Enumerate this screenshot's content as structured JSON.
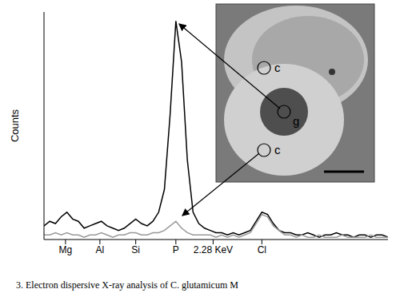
{
  "chart_data": {
    "type": "line",
    "y_label": "Counts",
    "caption": "3. Electron dispersive X-ray analysis of C. glutamicum M",
    "annotations": [
      "c",
      "g",
      "c"
    ],
    "x": [
      1.1,
      1.14,
      1.18,
      1.22,
      1.26,
      1.3,
      1.34,
      1.38,
      1.42,
      1.46,
      1.5,
      1.54,
      1.58,
      1.62,
      1.66,
      1.7,
      1.74,
      1.78,
      1.82,
      1.86,
      1.9,
      1.94,
      1.98,
      2.02,
      2.06,
      2.1,
      2.14,
      2.18,
      2.22,
      2.26,
      2.3,
      2.34,
      2.38,
      2.42,
      2.46,
      2.5,
      2.54,
      2.58,
      2.62,
      2.66,
      2.7,
      2.74,
      2.78,
      2.82,
      2.86,
      2.9,
      2.94,
      2.98,
      3.02,
      3.06,
      3.1,
      3.14,
      3.18,
      3.22,
      3.26,
      3.3,
      3.34,
      3.38,
      3.42,
      3.46,
      3.5
    ],
    "series": [
      {
        "color": "#000000",
        "values": [
          6,
          8,
          7,
          10,
          12,
          9,
          8,
          5,
          6,
          7,
          8,
          6,
          5,
          4,
          5,
          7,
          9,
          7,
          6,
          8,
          12,
          22,
          55,
          96,
          78,
          35,
          12,
          7,
          5,
          4,
          3,
          3,
          2,
          3,
          2,
          3,
          4,
          8,
          12,
          11,
          7,
          4,
          3,
          3,
          2,
          2,
          3,
          2,
          1,
          2,
          2,
          3,
          2,
          2,
          1,
          2,
          2,
          1,
          2,
          2,
          1
        ]
      },
      {
        "color": "#999999",
        "values": [
          2,
          2,
          3,
          2,
          3,
          2,
          2,
          1,
          2,
          2,
          3,
          2,
          1,
          2,
          2,
          3,
          3,
          2,
          2,
          3,
          3,
          4,
          6,
          8,
          5,
          3,
          2,
          2,
          2,
          2,
          1,
          2,
          1,
          2,
          1,
          2,
          3,
          7,
          11,
          10,
          6,
          4,
          2,
          2,
          1,
          2,
          1,
          1,
          2,
          1,
          1,
          1,
          2,
          1,
          1,
          1,
          1,
          2,
          1,
          1,
          1
        ]
      }
    ],
    "xlim": [
      1.1,
      3.5
    ],
    "xticks": [
      {
        "value": 1.25,
        "label": "Mg"
      },
      {
        "value": 1.49,
        "label": "Al"
      },
      {
        "value": 1.74,
        "label": "Si"
      },
      {
        "value": 2.02,
        "label": "P"
      },
      {
        "value": 2.28,
        "label": "2.28 KeV"
      },
      {
        "value": 2.62,
        "label": "Cl"
      }
    ],
    "ylim": [
      0,
      100
    ],
    "yticks": [],
    "tick_labels": "x",
    "grid": false
  }
}
